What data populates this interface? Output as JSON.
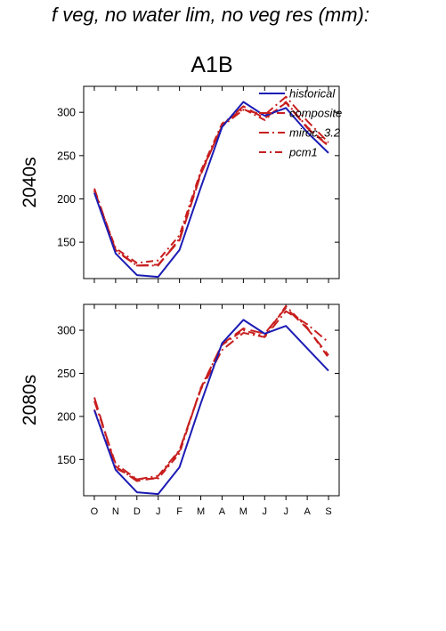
{
  "figure_title": "f veg, no water lim, no veg res (mm):",
  "chart_data": {
    "type": "line",
    "scenario": "A1B",
    "categories": [
      "O",
      "N",
      "D",
      "J",
      "F",
      "M",
      "A",
      "M",
      "J",
      "J",
      "A",
      "S"
    ],
    "ylim": [
      108,
      330
    ],
    "yticks": [
      150,
      200,
      250,
      300
    ],
    "legend": {
      "position": "top-right"
    },
    "series_styles": [
      {
        "name": "historical",
        "color": "#1c1cb4",
        "dash": ""
      },
      {
        "name": "composite",
        "color": "#c81e1e",
        "dash": "14 6"
      },
      {
        "name": "miroc_3.2",
        "color": "#c81e1e",
        "dash": "11 4 2 4"
      },
      {
        "name": "pcm1",
        "color": "#c81e1e",
        "dash": "8 4 2 4"
      }
    ],
    "panels": [
      {
        "row_label": "2040s",
        "series": [
          {
            "name": "historical",
            "values": [
              207,
              137,
              112,
              110,
              141,
              213,
              283,
              312,
              296,
              305,
              277,
              253
            ]
          },
          {
            "name": "composite",
            "values": [
              210,
              141,
              123,
              124,
              152,
              228,
              285,
              307,
              293,
              311,
              282,
              261
            ]
          },
          {
            "name": "miroc_3.2",
            "values": [
              212,
              140,
              123,
              123,
              154,
              230,
              284,
              303,
              297,
              318,
              290,
              265
            ]
          },
          {
            "name": "pcm1",
            "values": [
              209,
              143,
              126,
              129,
              158,
              232,
              287,
              304,
              291,
              312,
              283,
              262
            ]
          }
        ]
      },
      {
        "row_label": "2080s",
        "series": [
          {
            "name": "historical",
            "values": [
              207,
              138,
              112,
              110,
              141,
              215,
              285,
              312,
              296,
              305,
              279,
              253
            ]
          },
          {
            "name": "composite",
            "values": [
              222,
              142,
              125,
              129,
              160,
              232,
              284,
              302,
              296,
              326,
              302,
              271
            ]
          },
          {
            "name": "miroc_3.2",
            "values": [
              218,
              145,
              127,
              131,
              161,
              231,
              277,
              297,
              292,
              322,
              307,
              286
            ]
          },
          {
            "name": "pcm1",
            "values": [
              208,
              140,
              127,
              128,
              157,
              233,
              283,
              300,
              293,
              328,
              303,
              268
            ]
          }
        ]
      }
    ]
  }
}
